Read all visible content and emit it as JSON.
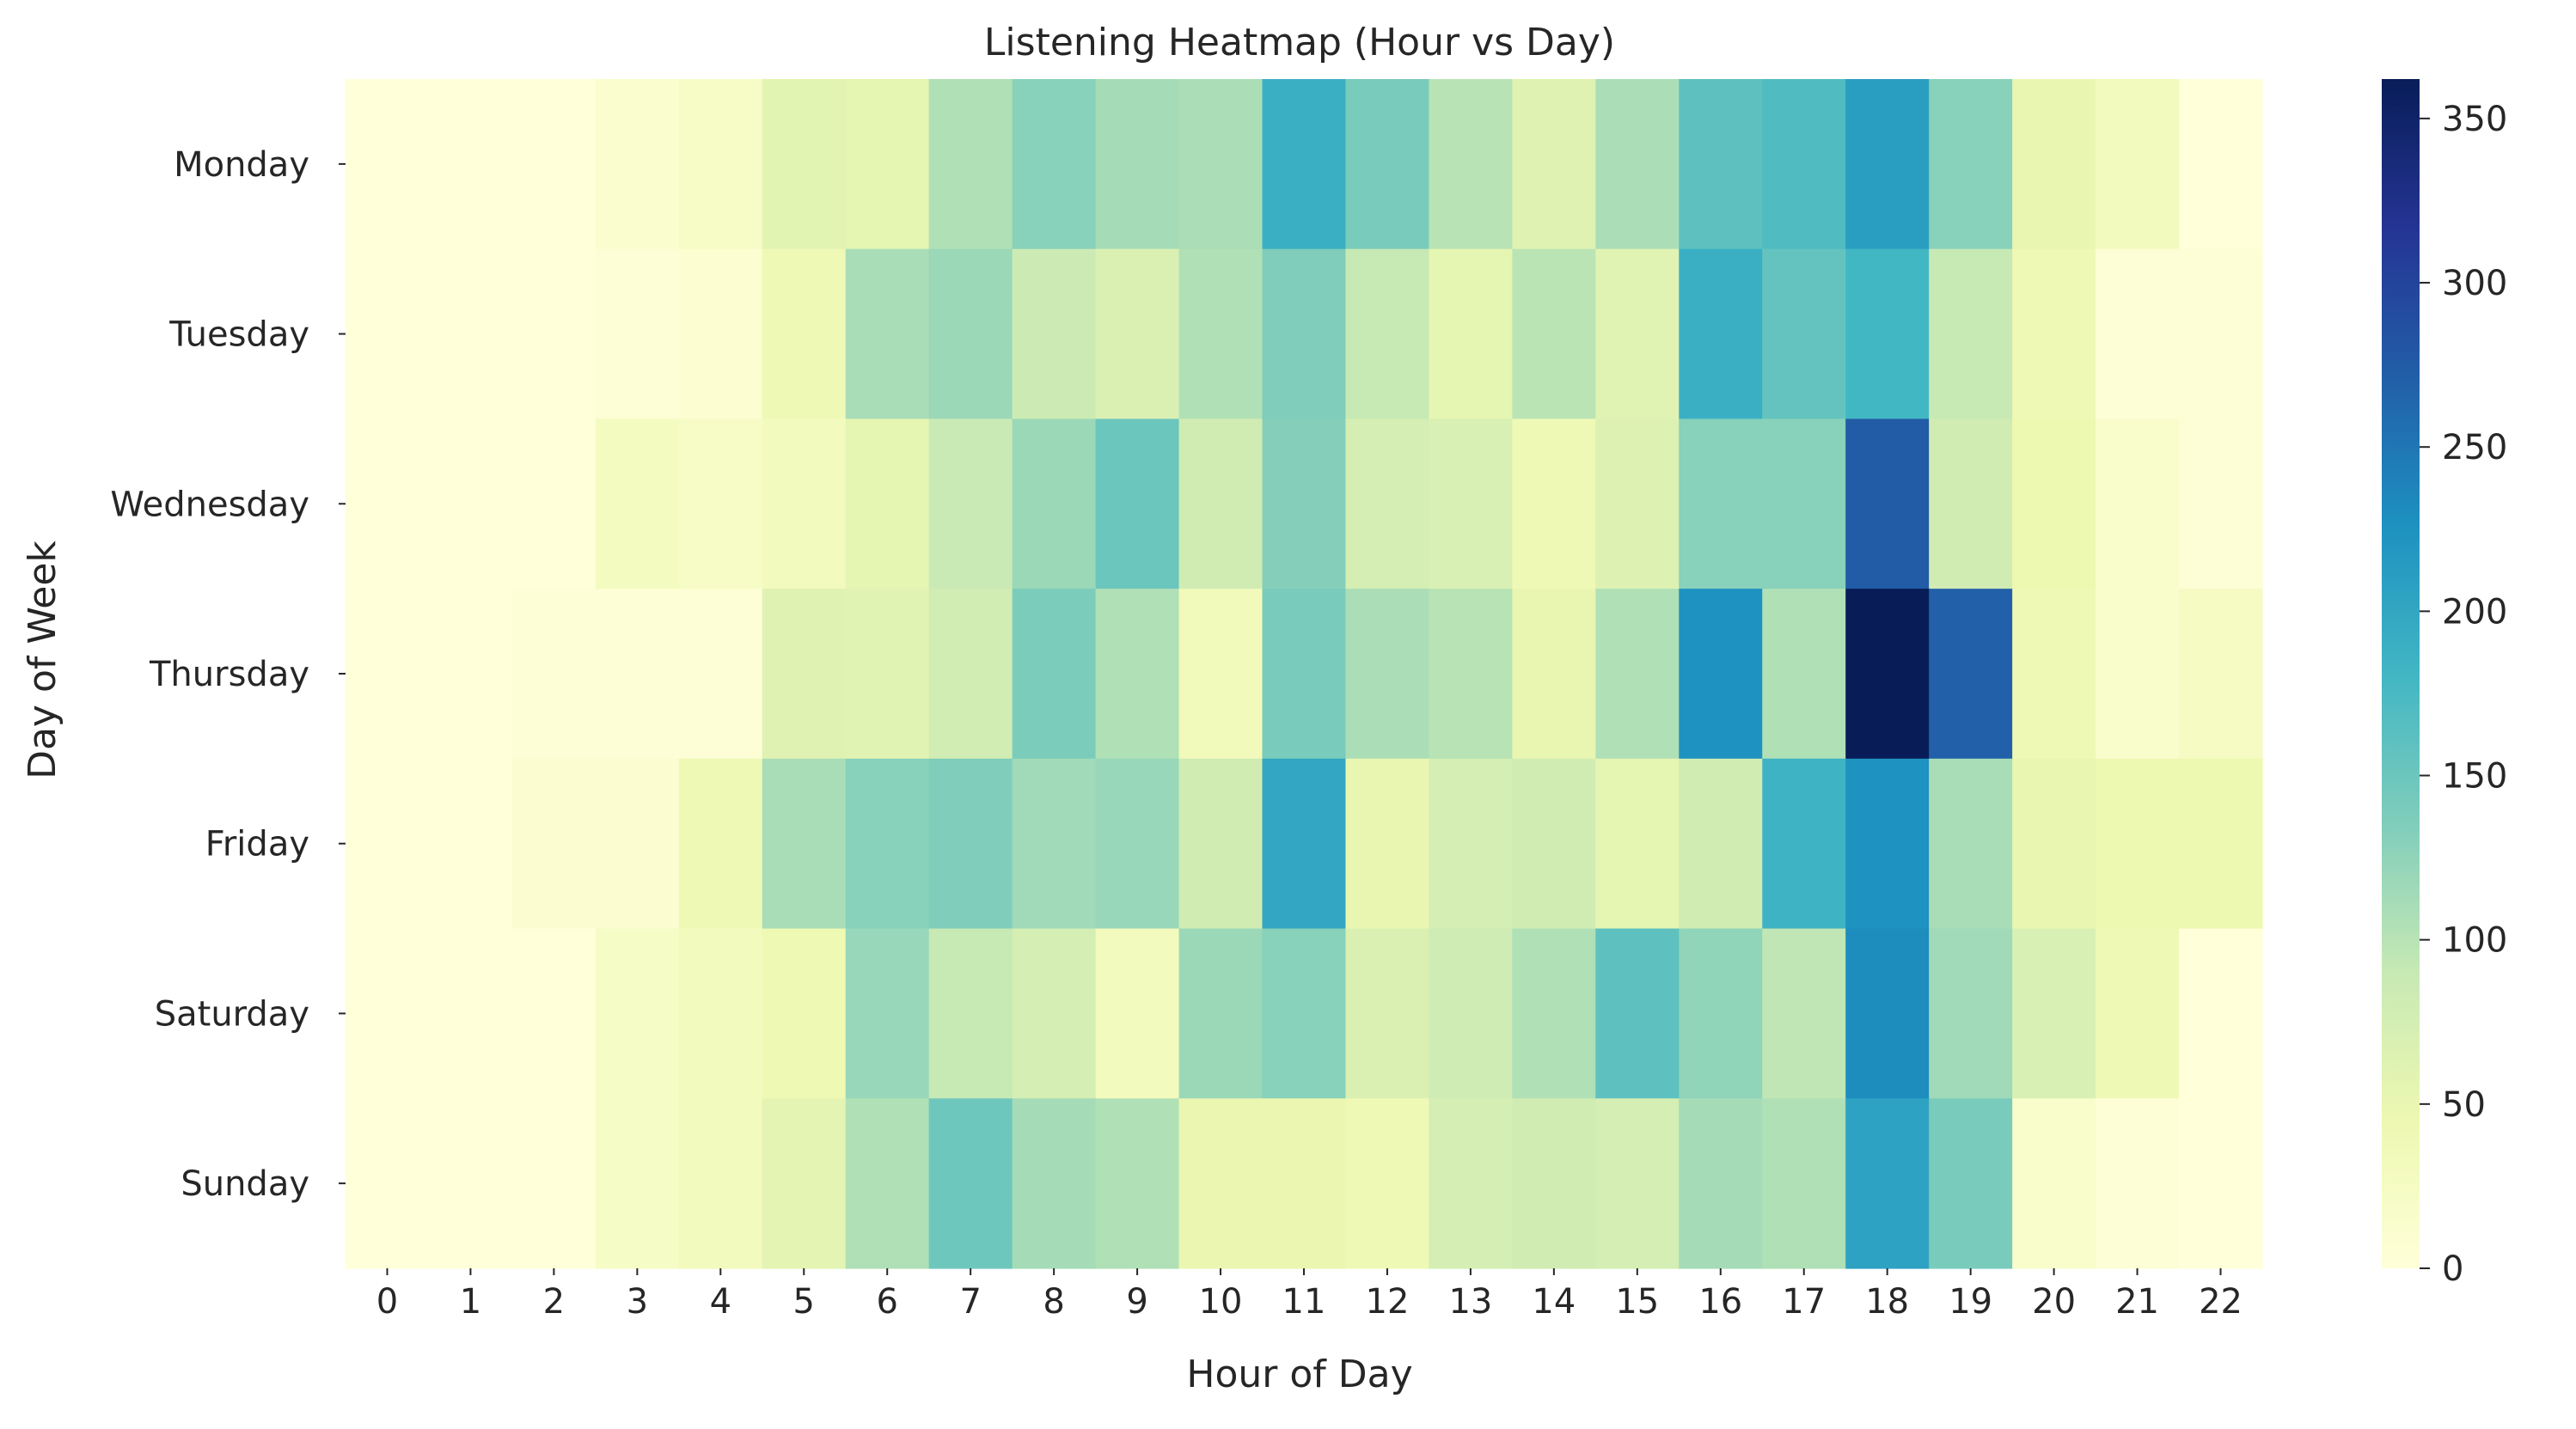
{
  "chart_data": {
    "type": "heatmap",
    "title": "Listening Heatmap (Hour vs Day)",
    "xlabel": "Hour of Day",
    "ylabel": "Day of Week",
    "colormap": "YlGnBu",
    "x": [
      "0",
      "1",
      "2",
      "3",
      "4",
      "5",
      "6",
      "7",
      "8",
      "9",
      "10",
      "11",
      "12",
      "13",
      "14",
      "15",
      "16",
      "17",
      "18",
      "19",
      "20",
      "21",
      "22"
    ],
    "y": [
      "Monday",
      "Tuesday",
      "Wednesday",
      "Thursday",
      "Friday",
      "Saturday",
      "Sunday"
    ],
    "values": [
      [
        0,
        0,
        0,
        12,
        20,
        58,
        55,
        105,
        130,
        112,
        108,
        190,
        140,
        100,
        62,
        108,
        160,
        170,
        210,
        130,
        50,
        30,
        0
      ],
      [
        0,
        0,
        0,
        5,
        8,
        40,
        110,
        118,
        85,
        68,
        105,
        135,
        90,
        55,
        98,
        60,
        190,
        155,
        180,
        90,
        40,
        5,
        5
      ],
      [
        0,
        0,
        0,
        28,
        20,
        30,
        55,
        88,
        118,
        150,
        80,
        132,
        75,
        70,
        40,
        65,
        130,
        130,
        275,
        80,
        45,
        15,
        5
      ],
      [
        0,
        0,
        5,
        5,
        5,
        62,
        60,
        78,
        138,
        105,
        35,
        140,
        108,
        100,
        50,
        105,
        225,
        105,
        362,
        270,
        40,
        15,
        25
      ],
      [
        0,
        0,
        10,
        10,
        40,
        110,
        130,
        135,
        115,
        120,
        80,
        200,
        50,
        75,
        80,
        55,
        80,
        185,
        225,
        110,
        50,
        45,
        45
      ],
      [
        0,
        0,
        0,
        22,
        32,
        42,
        120,
        90,
        75,
        30,
        118,
        130,
        68,
        82,
        105,
        160,
        125,
        95,
        230,
        115,
        70,
        40,
        0
      ],
      [
        0,
        0,
        0,
        22,
        30,
        56,
        105,
        148,
        112,
        105,
        48,
        48,
        40,
        75,
        80,
        75,
        112,
        105,
        205,
        140,
        15,
        5,
        0
      ]
    ],
    "vmin": 0,
    "vmax": 362,
    "colorbar_ticks": [
      0,
      50,
      100,
      150,
      200,
      250,
      300,
      350
    ],
    "colorbar_tick_labels": [
      "0",
      "50",
      "100",
      "150",
      "200",
      "250",
      "300",
      "350"
    ]
  }
}
